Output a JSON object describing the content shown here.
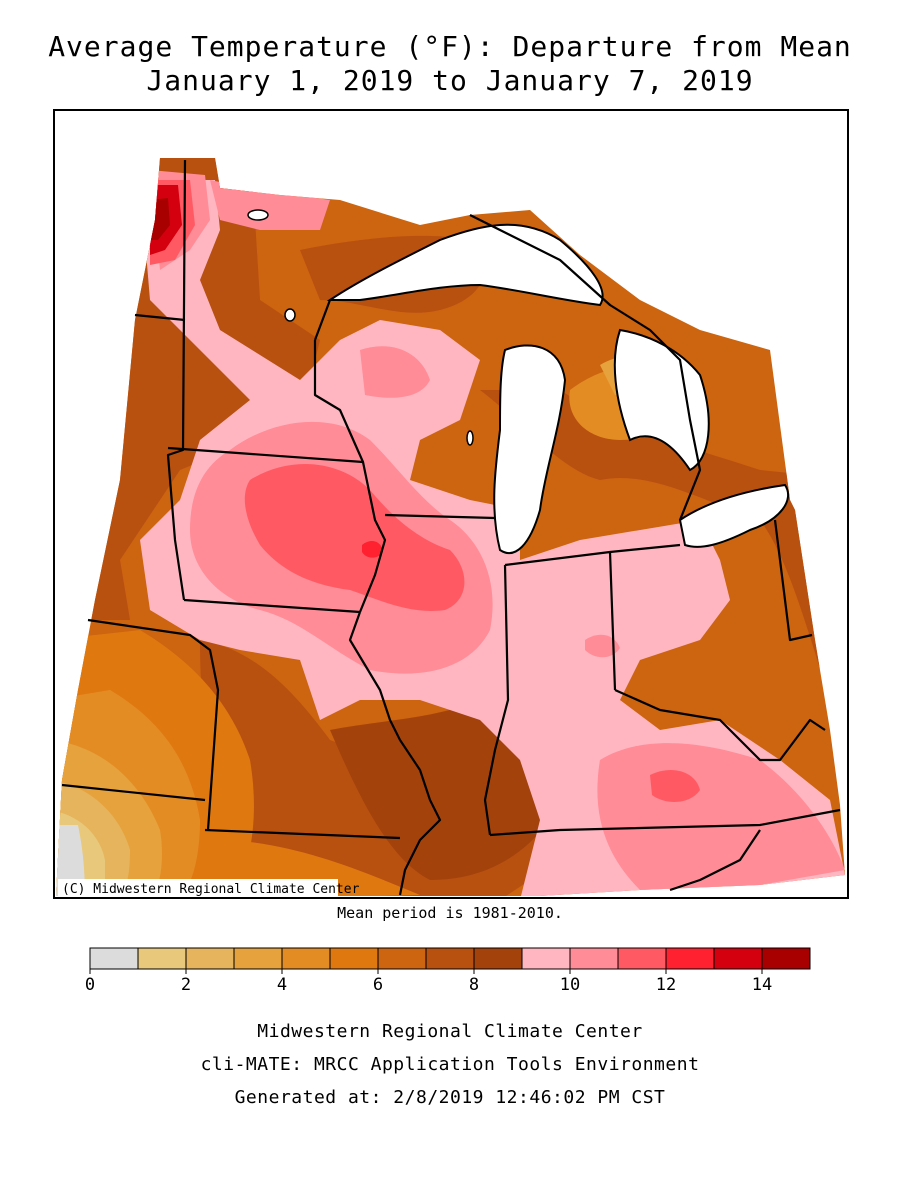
{
  "title": {
    "line1": "Average Temperature (°F): Departure from Mean",
    "line2": "January 1, 2019 to January 7, 2019"
  },
  "copyright": "(C) Midwestern Regional Climate Center",
  "mean_period": "Mean period is 1981-2010.",
  "legend": {
    "colors": [
      "#dcdcdc",
      "#e8c87a",
      "#e6b45c",
      "#e6a23c",
      "#e48c24",
      "#e07810",
      "#cc6410",
      "#b85010",
      "#a4420c",
      "#ffb6c1",
      "#ff8c96",
      "#ff5a64",
      "#ff2030",
      "#d40010",
      "#a80000"
    ],
    "ticks": [
      "0",
      "2",
      "4",
      "6",
      "8",
      "10",
      "12",
      "14"
    ],
    "tick_values": [
      0,
      2,
      4,
      6,
      8,
      10,
      12,
      14
    ],
    "min": 0,
    "max": 15
  },
  "footer": {
    "line1": "Midwestern Regional Climate Center",
    "line2": "cli-MATE: MRCC Application Tools Environment",
    "line3": "Generated at: 2/8/2019 12:46:02 PM CST"
  }
}
